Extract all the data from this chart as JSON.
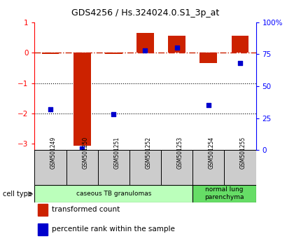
{
  "title": "GDS4256 / Hs.324024.0.S1_3p_at",
  "samples": [
    "GSM501249",
    "GSM501250",
    "GSM501251",
    "GSM501252",
    "GSM501253",
    "GSM501254",
    "GSM501255"
  ],
  "transformed_counts": [
    -0.05,
    -3.05,
    -0.05,
    0.65,
    0.55,
    -0.35,
    0.55
  ],
  "percentile_ranks": [
    32,
    1,
    28,
    78,
    80,
    35,
    68
  ],
  "ylim_left": [
    -3.2,
    1.0
  ],
  "ylim_right": [
    0,
    100
  ],
  "bar_color": "#cc2200",
  "dot_color": "#0000cc",
  "groups": [
    {
      "label": "caseous TB granulomas",
      "start": 0,
      "end": 5,
      "color": "#bbffbb"
    },
    {
      "label": "normal lung\nparenchyma",
      "start": 5,
      "end": 7,
      "color": "#66dd66"
    }
  ],
  "cell_type_label": "cell type",
  "legend_bar_label": "transformed count",
  "legend_dot_label": "percentile rank within the sample",
  "background_color": "#ffffff",
  "yticks_left": [
    -3,
    -2,
    -1,
    0,
    1
  ],
  "yticks_right": [
    0,
    25,
    50,
    75,
    100
  ],
  "ytick_right_labels": [
    "0",
    "25",
    "50",
    "75",
    "100%"
  ]
}
